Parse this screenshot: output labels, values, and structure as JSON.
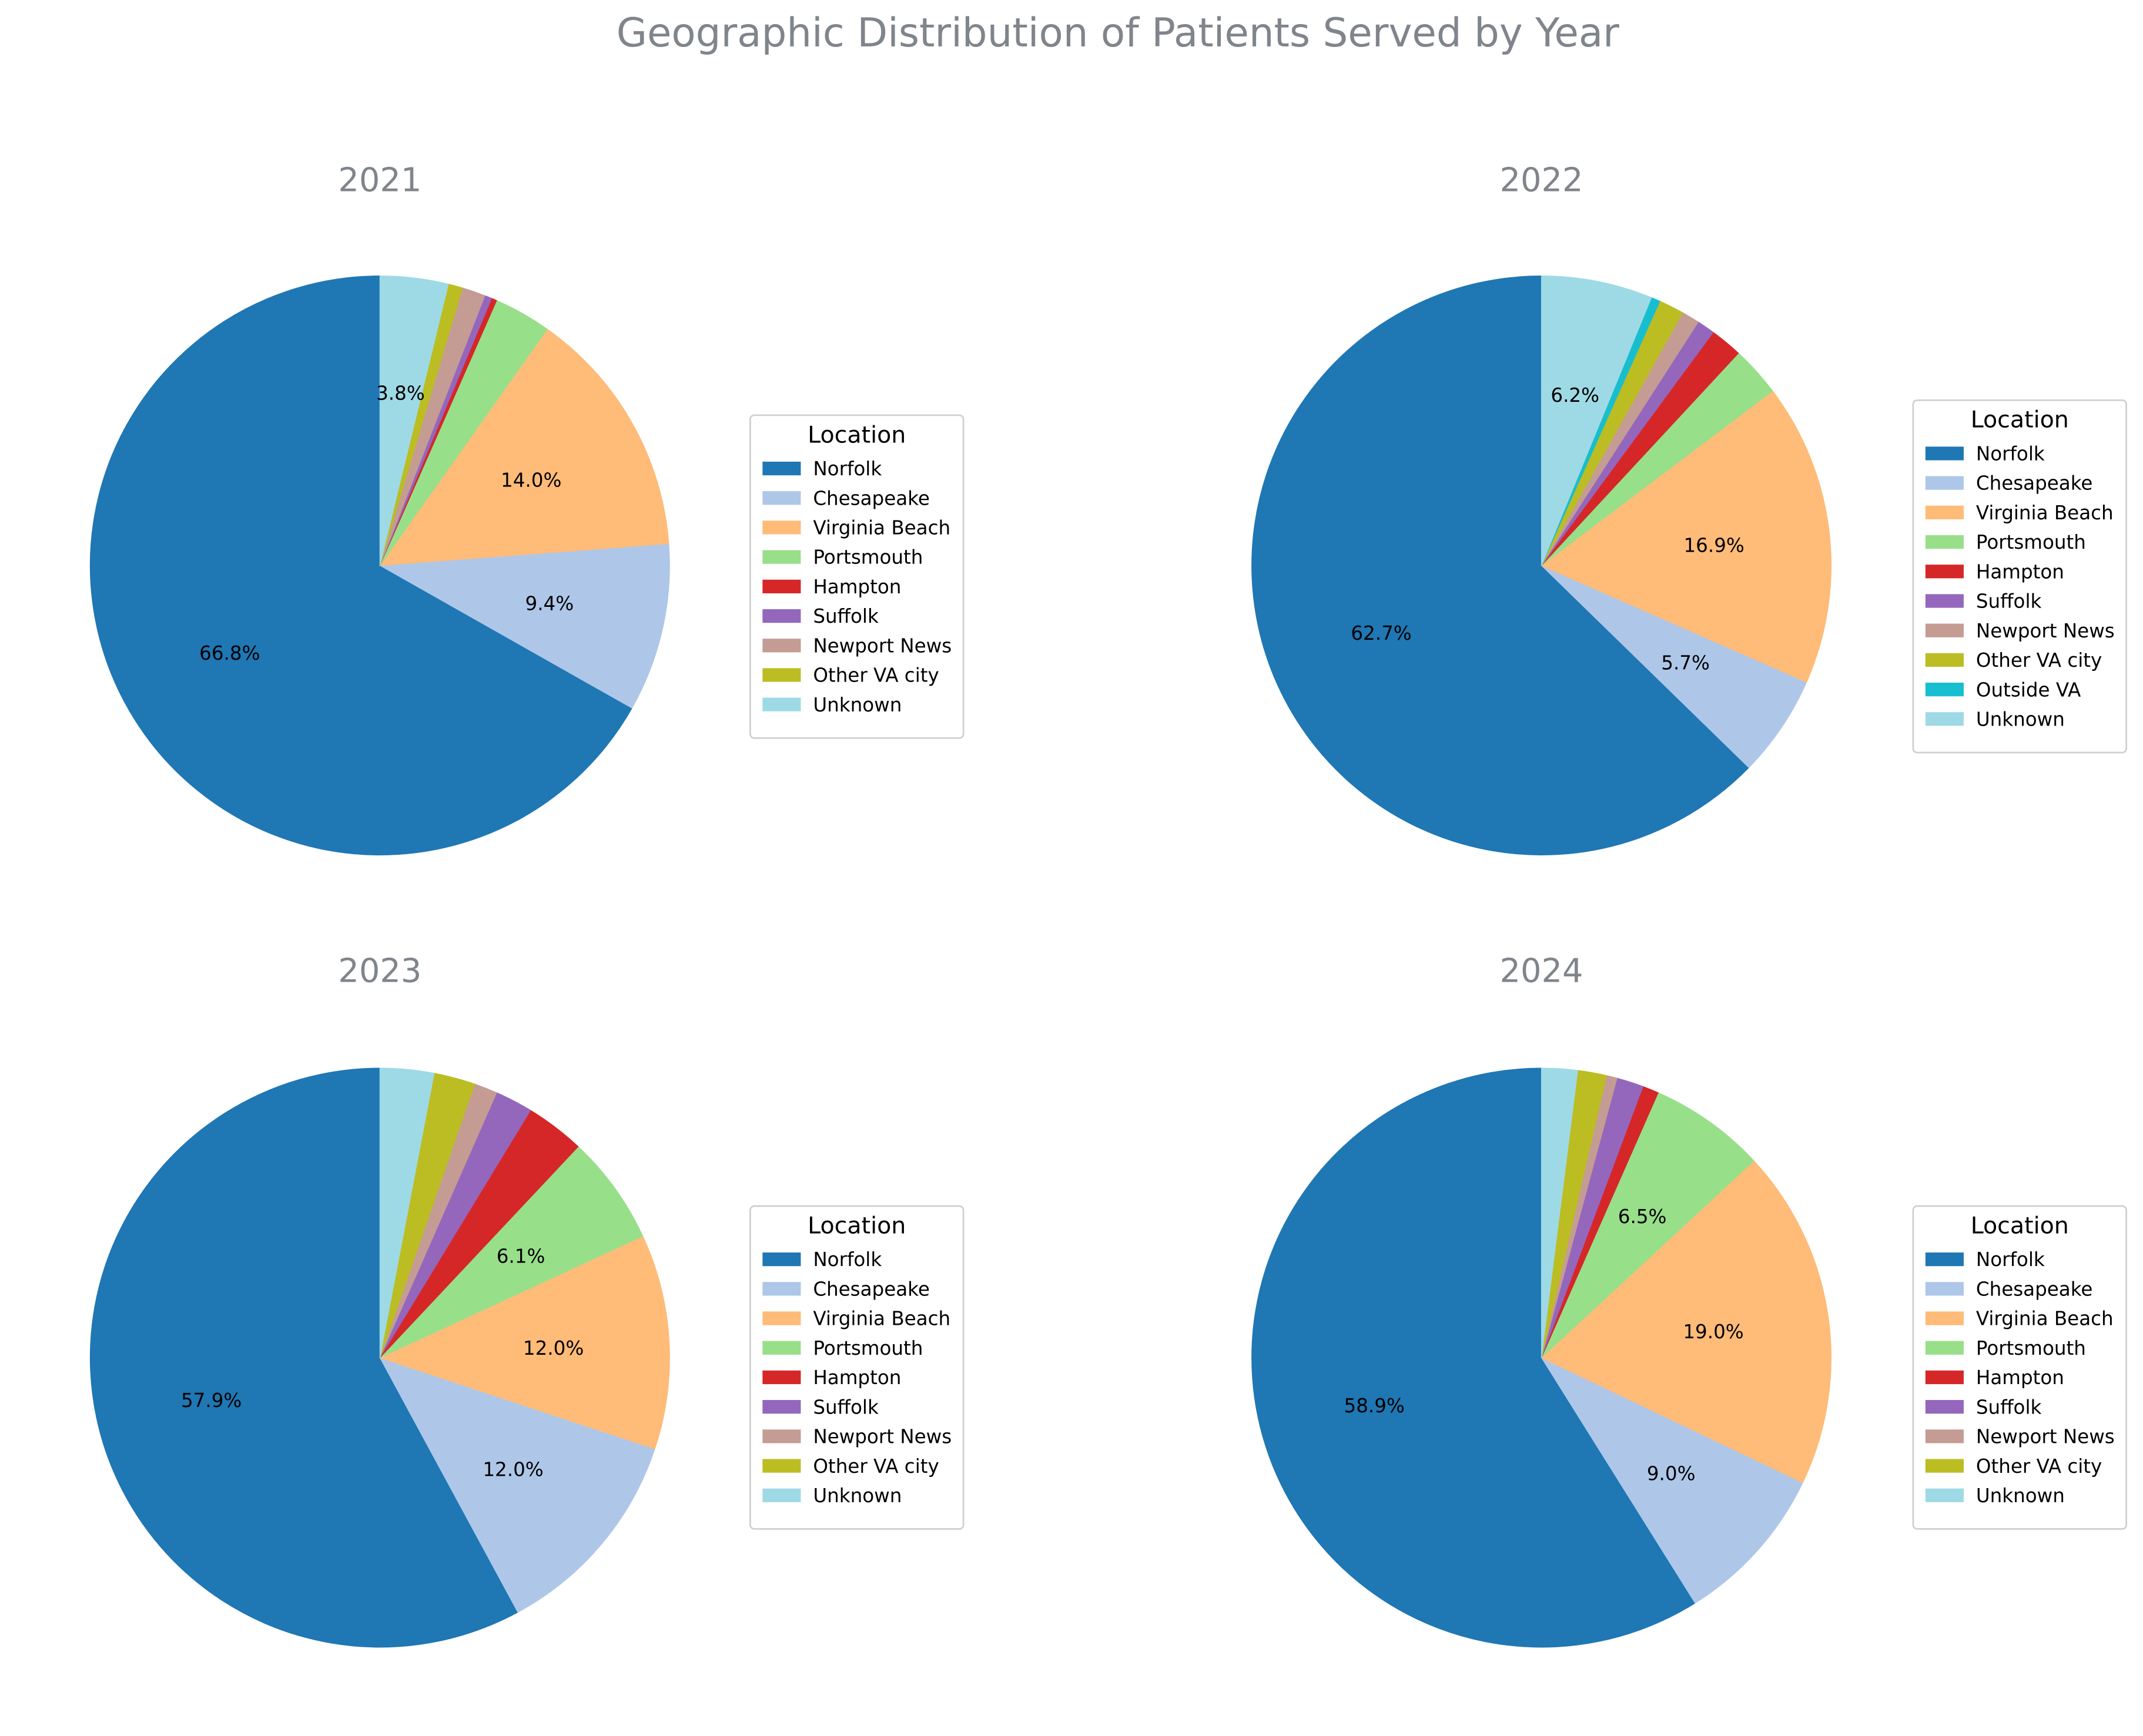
{
  "chart_data": {
    "type": "pie",
    "title": "Geographic Distribution of Patients Served by Year",
    "legend_title": "Location",
    "legend_placement": "right",
    "colors": {
      "Norfolk": "#1f77b4",
      "Chesapeake": "#aec7e8",
      "Virginia Beach": "#ffbb78",
      "Portsmouth": "#98df8a",
      "Hampton": "#d62728",
      "Suffolk": "#9467bd",
      "Newport News": "#c49c94",
      "Other VA city": "#bcbd22",
      "Outside VA": "#17becf",
      "Unknown": "#9edae5"
    },
    "charts": [
      {
        "title": "2021",
        "categories": [
          "Norfolk",
          "Chesapeake",
          "Virginia Beach",
          "Portsmouth",
          "Hampton",
          "Suffolk",
          "Newport News",
          "Other VA city",
          "Unknown"
        ],
        "values": [
          66.8,
          9.4,
          14.0,
          3.2,
          0.3,
          0.4,
          1.3,
          0.8,
          3.8
        ],
        "labels": [
          "66.8%",
          "9.4%",
          "14.0%",
          "",
          "",
          "",
          "",
          "",
          "3.8%"
        ]
      },
      {
        "title": "2022",
        "categories": [
          "Norfolk",
          "Chesapeake",
          "Virginia Beach",
          "Portsmouth",
          "Hampton",
          "Suffolk",
          "Newport News",
          "Other VA city",
          "Outside VA",
          "Unknown"
        ],
        "values": [
          62.7,
          5.7,
          16.9,
          2.8,
          1.8,
          1.0,
          1.0,
          1.4,
          0.5,
          6.2
        ],
        "labels": [
          "62.7%",
          "5.7%",
          "16.9%",
          "",
          "",
          "",
          "",
          "",
          "",
          "6.2%"
        ]
      },
      {
        "title": "2023",
        "categories": [
          "Norfolk",
          "Chesapeake",
          "Virginia Beach",
          "Portsmouth",
          "Hampton",
          "Suffolk",
          "Newport News",
          "Other VA city",
          "Unknown"
        ],
        "values": [
          57.9,
          12.0,
          12.0,
          6.1,
          3.3,
          2.1,
          1.3,
          2.3,
          3.0
        ],
        "labels": [
          "57.9%",
          "12.0%",
          "12.0%",
          "6.1%",
          "",
          "",
          "",
          "",
          ""
        ]
      },
      {
        "title": "2024",
        "categories": [
          "Norfolk",
          "Chesapeake",
          "Virginia Beach",
          "Portsmouth",
          "Hampton",
          "Suffolk",
          "Newport News",
          "Other VA city",
          "Unknown"
        ],
        "values": [
          58.9,
          9.0,
          19.0,
          6.5,
          0.9,
          1.5,
          0.6,
          1.6,
          2.0
        ],
        "labels": [
          "58.9%",
          "9.0%",
          "19.0%",
          "6.5%",
          "",
          "",
          "",
          "",
          ""
        ]
      }
    ]
  }
}
